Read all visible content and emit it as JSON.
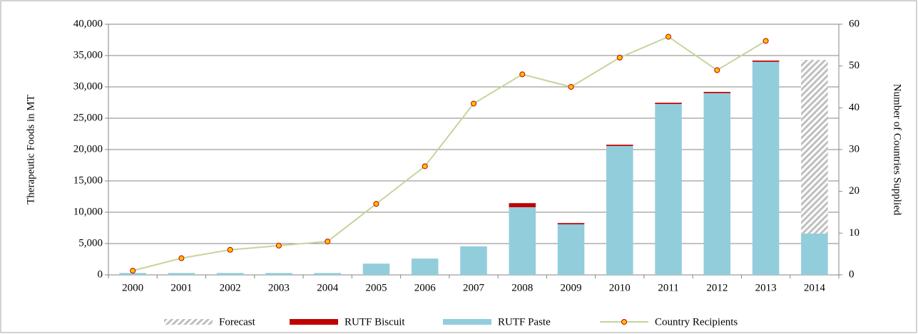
{
  "chart_data": {
    "type": "bar-line",
    "y_label": "Therapeutic Foods in MT",
    "y2_label": "Number of Countries Supplied",
    "categories": [
      "2000",
      "2001",
      "2002",
      "2003",
      "2004",
      "2005",
      "2006",
      "2007",
      "2008",
      "2009",
      "2010",
      "2011",
      "2012",
      "2013",
      "2014"
    ],
    "series": [
      {
        "name": "Forecast",
        "type": "bar",
        "color": "#bfbfbf",
        "pattern": "hatch",
        "values": [
          0,
          0,
          0,
          0,
          0,
          0,
          0,
          0,
          0,
          0,
          0,
          0,
          0,
          0,
          27700
        ]
      },
      {
        "name": "RUTF Biscuit",
        "type": "bar",
        "color": "#c00000",
        "values": [
          0,
          0,
          0,
          0,
          0,
          0,
          0,
          0,
          650,
          200,
          200,
          200,
          200,
          200,
          0
        ]
      },
      {
        "name": "RUTF Paste",
        "type": "bar",
        "color": "#92cddc",
        "values": [
          300,
          300,
          300,
          300,
          300,
          1800,
          2600,
          4550,
          10800,
          8070,
          20570,
          27270,
          29000,
          34000,
          6600
        ]
      },
      {
        "name": "Country Recipients",
        "type": "line",
        "axis": "y2",
        "color": "#c3d69b",
        "marker_color": "#ffc000",
        "values": [
          1,
          4,
          6,
          7,
          8,
          17,
          26,
          41,
          48,
          45,
          52,
          57,
          49,
          56,
          null
        ]
      }
    ],
    "stack_order": [
      "RUTF Paste",
      "RUTF Biscuit",
      "Forecast"
    ],
    "ylim": [
      0,
      40000
    ],
    "yticks": [
      0,
      {
        "value": 5000,
        "label": "5,000"
      },
      {
        "value": 10000,
        "label": "10,000"
      },
      {
        "value": 15000,
        "label": "15,000"
      },
      {
        "value": 20000,
        "label": "20,000"
      },
      {
        "value": 25000,
        "label": "25,000"
      },
      {
        "value": 30000,
        "label": "30,000"
      },
      {
        "value": 35000,
        "label": "35,000"
      },
      {
        "value": 40000,
        "label": "40,000"
      }
    ],
    "y2lim": [
      0,
      60
    ],
    "y2ticks": [
      0,
      10,
      20,
      30,
      40,
      50,
      60
    ],
    "grid": true,
    "legend": "bottom"
  }
}
